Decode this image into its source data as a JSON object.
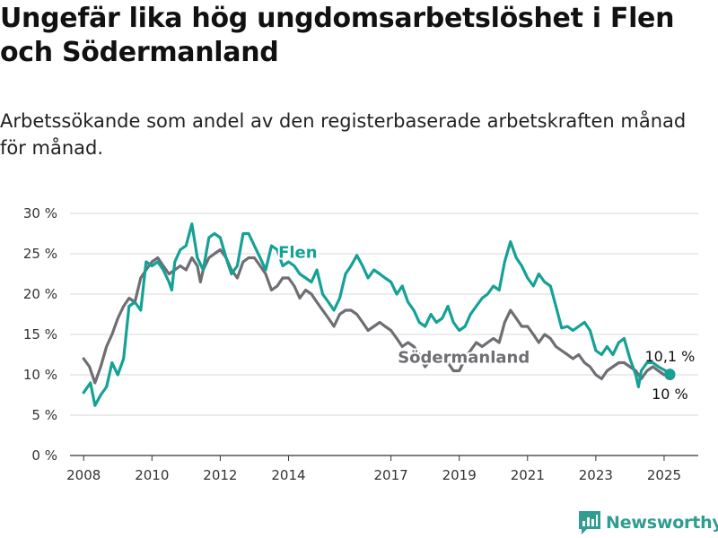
{
  "title": "Ungefär lika hög ungdomsarbetslöshet i Flen och Södermanland",
  "subtitle": "Arbetssökande som andel av den registerbaserade arbetskraften månad för månad.",
  "brand": "Newsworthy",
  "colors": {
    "flen": "#14a196",
    "sodermanland": "#6e6e73",
    "grid": "#d9d9d9",
    "axis": "#333333",
    "brand": "#2f9d8f"
  },
  "icons": {
    "logo": "newsworthy-logo-icon"
  },
  "chart_data": {
    "type": "line",
    "xlim": [
      2007.6,
      2026.0
    ],
    "ylim": [
      0,
      30
    ],
    "yticks": [
      0,
      5,
      10,
      15,
      20,
      25,
      30
    ],
    "ytick_labels": [
      "0 %",
      "5 %",
      "10 %",
      "15 %",
      "20 %",
      "25 %",
      "30 %"
    ],
    "xticks": [
      2008,
      2010,
      2012,
      2014,
      2017,
      2019,
      2021,
      2023,
      2025
    ],
    "xtick_labels": [
      "2008",
      "2010",
      "2012",
      "2014",
      "2017",
      "2019",
      "2021",
      "2023",
      "2025"
    ],
    "grid": true,
    "series": [
      {
        "name": "Flen",
        "key": "flen",
        "points": [
          [
            2008.0,
            7.8
          ],
          [
            2008.2,
            9.0
          ],
          [
            2008.33,
            6.2
          ],
          [
            2008.5,
            7.5
          ],
          [
            2008.67,
            8.5
          ],
          [
            2008.83,
            11.5
          ],
          [
            2009.0,
            10.0
          ],
          [
            2009.17,
            12.0
          ],
          [
            2009.33,
            18.5
          ],
          [
            2009.5,
            19.0
          ],
          [
            2009.67,
            18.0
          ],
          [
            2009.83,
            24.0
          ],
          [
            2010.0,
            23.5
          ],
          [
            2010.17,
            24.0
          ],
          [
            2010.33,
            23.0
          ],
          [
            2010.5,
            21.5
          ],
          [
            2010.58,
            20.5
          ],
          [
            2010.67,
            24.0
          ],
          [
            2010.83,
            25.5
          ],
          [
            2011.0,
            26.0
          ],
          [
            2011.17,
            28.7
          ],
          [
            2011.33,
            24.5
          ],
          [
            2011.5,
            23.0
          ],
          [
            2011.67,
            27.0
          ],
          [
            2011.83,
            27.5
          ],
          [
            2012.0,
            27.0
          ],
          [
            2012.17,
            24.5
          ],
          [
            2012.33,
            22.5
          ],
          [
            2012.5,
            23.5
          ],
          [
            2012.67,
            27.5
          ],
          [
            2012.83,
            27.5
          ],
          [
            2013.0,
            26.0
          ],
          [
            2013.17,
            24.5
          ],
          [
            2013.33,
            23.0
          ],
          [
            2013.5,
            26.0
          ],
          [
            2013.67,
            25.5
          ],
          [
            2013.83,
            23.5
          ],
          [
            2014.0,
            24.0
          ],
          [
            2014.17,
            23.5
          ],
          [
            2014.33,
            22.5
          ],
          [
            2014.5,
            22.0
          ],
          [
            2014.67,
            21.5
          ],
          [
            2014.83,
            23.0
          ],
          [
            2015.0,
            20.0
          ],
          [
            2015.17,
            19.0
          ],
          [
            2015.33,
            18.0
          ],
          [
            2015.5,
            19.5
          ],
          [
            2015.67,
            22.5
          ],
          [
            2015.83,
            23.5
          ],
          [
            2016.0,
            24.8
          ],
          [
            2016.17,
            23.5
          ],
          [
            2016.33,
            22.0
          ],
          [
            2016.5,
            23.0
          ],
          [
            2016.67,
            22.5
          ],
          [
            2016.83,
            22.0
          ],
          [
            2017.0,
            21.5
          ],
          [
            2017.17,
            20.0
          ],
          [
            2017.33,
            21.0
          ],
          [
            2017.5,
            19.0
          ],
          [
            2017.67,
            18.0
          ],
          [
            2017.83,
            16.5
          ],
          [
            2018.0,
            16.0
          ],
          [
            2018.17,
            17.5
          ],
          [
            2018.33,
            16.5
          ],
          [
            2018.5,
            17.0
          ],
          [
            2018.67,
            18.5
          ],
          [
            2018.83,
            16.5
          ],
          [
            2019.0,
            15.5
          ],
          [
            2019.17,
            16.0
          ],
          [
            2019.33,
            17.5
          ],
          [
            2019.5,
            18.5
          ],
          [
            2019.67,
            19.5
          ],
          [
            2019.83,
            20.0
          ],
          [
            2020.0,
            21.0
          ],
          [
            2020.17,
            20.5
          ],
          [
            2020.33,
            24.0
          ],
          [
            2020.5,
            26.5
          ],
          [
            2020.67,
            24.5
          ],
          [
            2020.83,
            23.5
          ],
          [
            2021.0,
            22.0
          ],
          [
            2021.17,
            21.0
          ],
          [
            2021.33,
            22.5
          ],
          [
            2021.5,
            21.5
          ],
          [
            2021.67,
            21.0
          ],
          [
            2021.83,
            18.5
          ],
          [
            2022.0,
            15.8
          ],
          [
            2022.17,
            16.0
          ],
          [
            2022.33,
            15.5
          ],
          [
            2022.5,
            16.0
          ],
          [
            2022.67,
            16.5
          ],
          [
            2022.83,
            15.5
          ],
          [
            2023.0,
            13.0
          ],
          [
            2023.17,
            12.5
          ],
          [
            2023.33,
            13.5
          ],
          [
            2023.5,
            12.5
          ],
          [
            2023.67,
            14.0
          ],
          [
            2023.83,
            14.5
          ],
          [
            2024.0,
            12.0
          ],
          [
            2024.17,
            10.0
          ],
          [
            2024.25,
            8.5
          ],
          [
            2024.33,
            10.5
          ],
          [
            2024.5,
            11.5
          ],
          [
            2024.67,
            11.5
          ],
          [
            2024.83,
            11.0
          ],
          [
            2025.0,
            10.6
          ],
          [
            2025.17,
            10.1
          ]
        ]
      },
      {
        "name": "Södermanland",
        "key": "sodermanland",
        "points": [
          [
            2008.0,
            12.0
          ],
          [
            2008.17,
            11.0
          ],
          [
            2008.33,
            9.0
          ],
          [
            2008.5,
            11.0
          ],
          [
            2008.67,
            13.5
          ],
          [
            2008.83,
            15.0
          ],
          [
            2009.0,
            17.0
          ],
          [
            2009.17,
            18.5
          ],
          [
            2009.33,
            19.5
          ],
          [
            2009.5,
            19.0
          ],
          [
            2009.67,
            22.0
          ],
          [
            2009.83,
            23.0
          ],
          [
            2010.0,
            24.0
          ],
          [
            2010.17,
            24.5
          ],
          [
            2010.33,
            23.5
          ],
          [
            2010.5,
            22.5
          ],
          [
            2010.67,
            23.0
          ],
          [
            2010.83,
            23.5
          ],
          [
            2011.0,
            23.0
          ],
          [
            2011.17,
            24.5
          ],
          [
            2011.33,
            23.5
          ],
          [
            2011.42,
            21.5
          ],
          [
            2011.5,
            23.0
          ],
          [
            2011.67,
            24.5
          ],
          [
            2011.83,
            25.0
          ],
          [
            2012.0,
            25.5
          ],
          [
            2012.17,
            24.5
          ],
          [
            2012.33,
            23.0
          ],
          [
            2012.5,
            22.0
          ],
          [
            2012.67,
            24.0
          ],
          [
            2012.83,
            24.5
          ],
          [
            2013.0,
            24.5
          ],
          [
            2013.17,
            23.5
          ],
          [
            2013.33,
            22.5
          ],
          [
            2013.5,
            20.5
          ],
          [
            2013.67,
            21.0
          ],
          [
            2013.83,
            22.0
          ],
          [
            2014.0,
            22.0
          ],
          [
            2014.17,
            21.0
          ],
          [
            2014.33,
            19.5
          ],
          [
            2014.5,
            20.5
          ],
          [
            2014.67,
            20.0
          ],
          [
            2014.83,
            19.0
          ],
          [
            2015.0,
            18.0
          ],
          [
            2015.17,
            17.0
          ],
          [
            2015.33,
            16.0
          ],
          [
            2015.5,
            17.5
          ],
          [
            2015.67,
            18.0
          ],
          [
            2015.83,
            18.0
          ],
          [
            2016.0,
            17.5
          ],
          [
            2016.17,
            16.5
          ],
          [
            2016.33,
            15.5
          ],
          [
            2016.5,
            16.0
          ],
          [
            2016.67,
            16.5
          ],
          [
            2016.83,
            16.0
          ],
          [
            2017.0,
            15.5
          ],
          [
            2017.17,
            14.5
          ],
          [
            2017.33,
            13.5
          ],
          [
            2017.5,
            14.0
          ],
          [
            2017.67,
            13.5
          ],
          [
            2017.83,
            12.5
          ],
          [
            2018.0,
            11.0
          ],
          [
            2018.17,
            12.0
          ],
          [
            2018.33,
            11.5
          ],
          [
            2018.5,
            12.0
          ],
          [
            2018.67,
            11.5
          ],
          [
            2018.83,
            10.5
          ],
          [
            2019.0,
            10.5
          ],
          [
            2019.17,
            12.0
          ],
          [
            2019.33,
            13.0
          ],
          [
            2019.5,
            14.0
          ],
          [
            2019.67,
            13.5
          ],
          [
            2019.83,
            14.0
          ],
          [
            2020.0,
            14.5
          ],
          [
            2020.17,
            14.0
          ],
          [
            2020.33,
            16.5
          ],
          [
            2020.5,
            18.0
          ],
          [
            2020.67,
            17.0
          ],
          [
            2020.83,
            16.0
          ],
          [
            2021.0,
            16.0
          ],
          [
            2021.17,
            15.0
          ],
          [
            2021.33,
            14.0
          ],
          [
            2021.5,
            15.0
          ],
          [
            2021.67,
            14.5
          ],
          [
            2021.83,
            13.5
          ],
          [
            2022.0,
            13.0
          ],
          [
            2022.17,
            12.5
          ],
          [
            2022.33,
            12.0
          ],
          [
            2022.5,
            12.5
          ],
          [
            2022.67,
            11.5
          ],
          [
            2022.83,
            11.0
          ],
          [
            2023.0,
            10.0
          ],
          [
            2023.17,
            9.5
          ],
          [
            2023.33,
            10.5
          ],
          [
            2023.5,
            11.0
          ],
          [
            2023.67,
            11.5
          ],
          [
            2023.83,
            11.5
          ],
          [
            2024.0,
            11.0
          ],
          [
            2024.17,
            10.5
          ],
          [
            2024.33,
            9.5
          ],
          [
            2024.5,
            10.5
          ],
          [
            2024.67,
            11.0
          ],
          [
            2024.83,
            10.5
          ],
          [
            2025.0,
            10.0
          ],
          [
            2025.17,
            10.0
          ]
        ]
      }
    ],
    "annotations": [
      {
        "text": "Flen",
        "series": "flen",
        "x": 2013.7,
        "y": 24.5
      },
      {
        "text": "Södermanland",
        "series": "sodermanland",
        "x": 2017.2,
        "y": 11.5
      },
      {
        "text": "10,1 %",
        "series": "flen",
        "x": 2025.17,
        "y": 10.1,
        "position": "above"
      },
      {
        "text": "10 %",
        "series": "sodermanland",
        "x": 2025.17,
        "y": 10.0,
        "position": "below"
      }
    ]
  }
}
